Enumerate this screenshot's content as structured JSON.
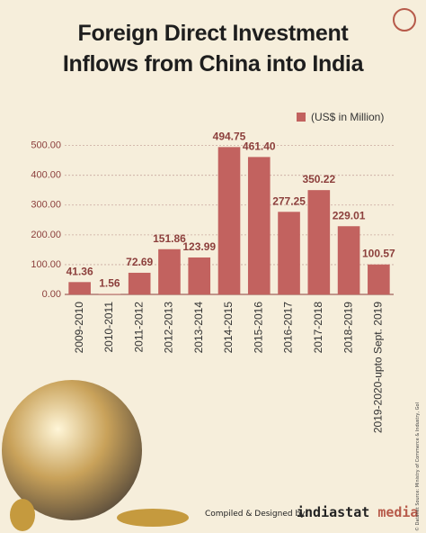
{
  "chart_data": {
    "type": "bar",
    "title": "Foreign Direct Investment Inflows from China into India",
    "legend": "(US$ in Million)",
    "categories": [
      "2009-2010",
      "2010-2011",
      "2011-2012",
      "2012-2013",
      "2013-2014",
      "2014-2015",
      "2015-2016",
      "2016-2017",
      "2017-2018",
      "2018-2019",
      "2019-2020-upto Sept. 2019"
    ],
    "values": [
      41.36,
      1.56,
      72.69,
      151.86,
      123.99,
      494.75,
      461.4,
      277.25,
      350.22,
      229.01,
      100.57
    ],
    "value_labels": [
      "41.36",
      "1.56",
      "72.69",
      "151.86",
      "123.99",
      "494.75",
      "461.40",
      "277.25",
      "350.22",
      "229.01",
      "100.57"
    ],
    "color": "#c2625f",
    "ylim": [
      0,
      520
    ],
    "yticks": [
      {
        "value": 0,
        "label": "0.00"
      },
      {
        "value": 100,
        "label": "100.00"
      },
      {
        "value": 200,
        "label": "200.00"
      },
      {
        "value": 300,
        "label": "300.00"
      },
      {
        "value": 400,
        "label": "400.00"
      },
      {
        "value": 500,
        "label": "500.00"
      }
    ],
    "grid": true
  },
  "footer": {
    "credit": "Compiled & Designed by:",
    "brand": "indiastat",
    "brand_suffix": "media",
    "source": "© Datanet  Source: Ministry of Commerce & Industry, GoI"
  }
}
